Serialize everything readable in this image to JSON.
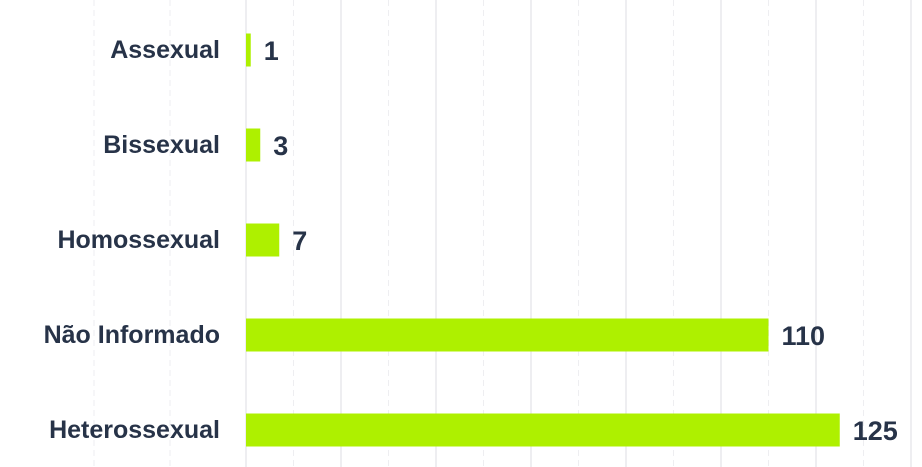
{
  "chart_data": {
    "type": "bar",
    "orientation": "horizontal",
    "categories": [
      "Assexual",
      "Bissexual",
      "Homossexual",
      "Não Informado",
      "Heterossexual"
    ],
    "values": [
      1,
      3,
      7,
      110,
      125
    ],
    "title": "",
    "xlabel": "",
    "ylabel": "",
    "xlim": [
      0,
      140
    ],
    "grid": true,
    "legend": "none",
    "colors": {
      "bar": "#aef000",
      "label_text": "#273348",
      "grid_major": "#dcdde3",
      "grid_minor": "#eeeef1",
      "background": "#ffffff"
    }
  }
}
